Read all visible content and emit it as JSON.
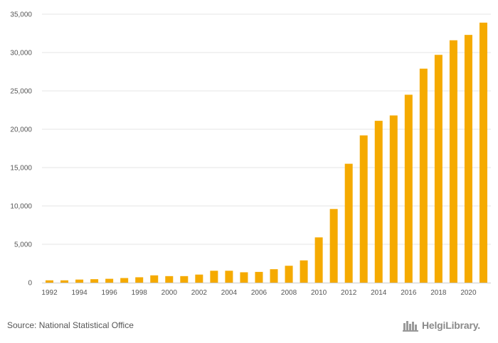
{
  "source_text": "Source: National Statistical Office",
  "brand": {
    "text": "HelgiLibrary.",
    "icon": "helgi-library-logo-icon"
  },
  "colors": {
    "bar": "#F5AA00",
    "grid": "#e6e6e6",
    "text": "#555555"
  },
  "chart_data": {
    "type": "bar",
    "title": "",
    "xlabel": "",
    "ylabel": "",
    "ylim": [
      0,
      35000
    ],
    "yticks": [
      0,
      5000,
      10000,
      15000,
      20000,
      25000,
      30000,
      35000
    ],
    "ytick_labels": [
      "0",
      "5,000",
      "10,000",
      "15,000",
      "20,000",
      "25,000",
      "30,000",
      "35,000"
    ],
    "grid": true,
    "categories": [
      "1992",
      "1993",
      "1994",
      "1995",
      "1996",
      "1997",
      "1998",
      "1999",
      "2000",
      "2001",
      "2002",
      "2003",
      "2004",
      "2005",
      "2006",
      "2007",
      "2008",
      "2009",
      "2010",
      "2011",
      "2012",
      "2013",
      "2014",
      "2015",
      "2016",
      "2017",
      "2018",
      "2019",
      "2020",
      "2021"
    ],
    "xtick_labels": [
      "1992",
      "",
      "1994",
      "",
      "1996",
      "",
      "1998",
      "",
      "2000",
      "",
      "2002",
      "",
      "2004",
      "",
      "2006",
      "",
      "2008",
      "",
      "2010",
      "",
      "2012",
      "",
      "2014",
      "",
      "2016",
      "",
      "2018",
      "",
      "2020",
      ""
    ],
    "values": [
      300,
      300,
      400,
      450,
      500,
      600,
      700,
      950,
      850,
      850,
      1050,
      1550,
      1550,
      1350,
      1400,
      1750,
      2200,
      2900,
      5900,
      9600,
      15500,
      19200,
      21100,
      21800,
      24500,
      27900,
      29700,
      31600,
      32300,
      33900
    ]
  }
}
